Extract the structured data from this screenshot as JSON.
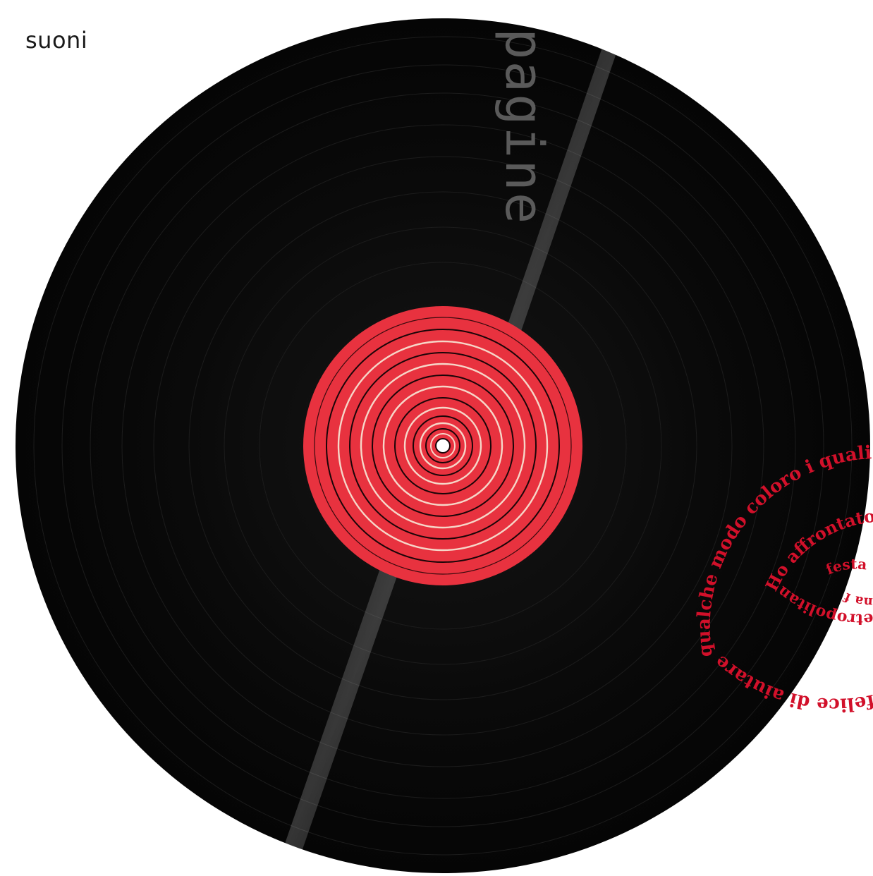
{
  "section_label": "suoni",
  "brand_word": "pagine",
  "colors": {
    "vinyl": "#0b0b0b",
    "label": "#e8323f",
    "spiral_text": "#d2102a",
    "brand": "#5a5a5a"
  },
  "spiral_lines": {
    "outer": "qualche modo coloro i quali, seppur inc",
    "outer_tail": "felice di aiutare in qu",
    "middle": "Ho affrontato con il sor",
    "middle_tail": "etropolitano.",
    "inner": "festa di paese",
    "inner_tail": "na fe"
  }
}
